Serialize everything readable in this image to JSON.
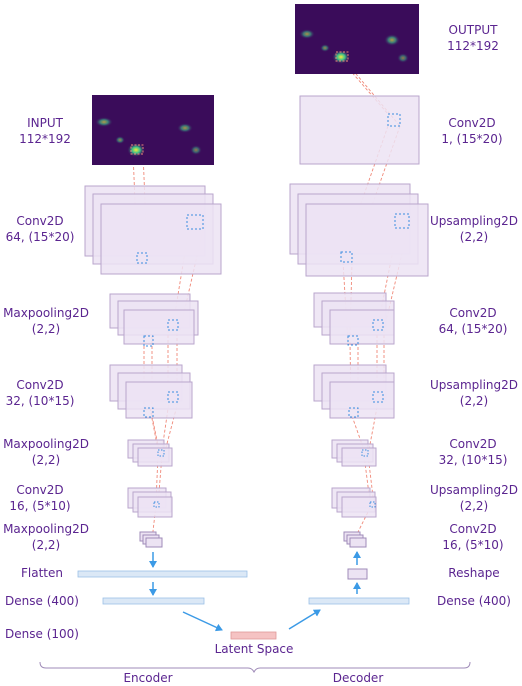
{
  "encoder": {
    "input": {
      "title": "INPUT",
      "size": "112*192"
    },
    "layers": [
      {
        "name": "Conv2D",
        "params": "64, (15*20)"
      },
      {
        "name": "Maxpooling2D",
        "params": "(2,2)"
      },
      {
        "name": "Conv2D",
        "params": "32, (10*15)"
      },
      {
        "name": "Maxpooling2D",
        "params": "(2,2)"
      },
      {
        "name": "Conv2D",
        "params": "16, (5*10)"
      },
      {
        "name": "Maxpooling2D",
        "params": "(2,2)"
      }
    ],
    "flatten": "Flatten",
    "dense1": "Dense (400)",
    "dense2": "Dense (100)",
    "caption": "Encoder"
  },
  "decoder": {
    "output": {
      "title": "OUTPUT",
      "size": "112*192"
    },
    "layers": [
      {
        "name": "Conv2D",
        "params": "1, (15*20)"
      },
      {
        "name": "Upsampling2D",
        "params": "(2,2)"
      },
      {
        "name": "Conv2D",
        "params": "64, (15*20)"
      },
      {
        "name": "Upsampling2D",
        "params": "(2,2)"
      },
      {
        "name": "Conv2D",
        "params": "32, (10*15)"
      },
      {
        "name": "Upsampling2D",
        "params": "(2,2)"
      },
      {
        "name": "Conv2D",
        "params": "16, (5*10)"
      }
    ],
    "reshape": "Reshape",
    "dense": "Dense (400)",
    "caption": "Decoder"
  },
  "latent": "Latent Space",
  "colors": {
    "label": "#5b2590",
    "layer_fill": "#ece3f3",
    "layer_stroke": "#b9a6cc",
    "kernel": "#3b8ee0",
    "projection": "#f08878",
    "arrow": "#3b9ae6",
    "dense_fill": "#dbe8f6",
    "latent_fill": "#f5c3c3",
    "heatmap_bg": "#3a0c5a"
  }
}
